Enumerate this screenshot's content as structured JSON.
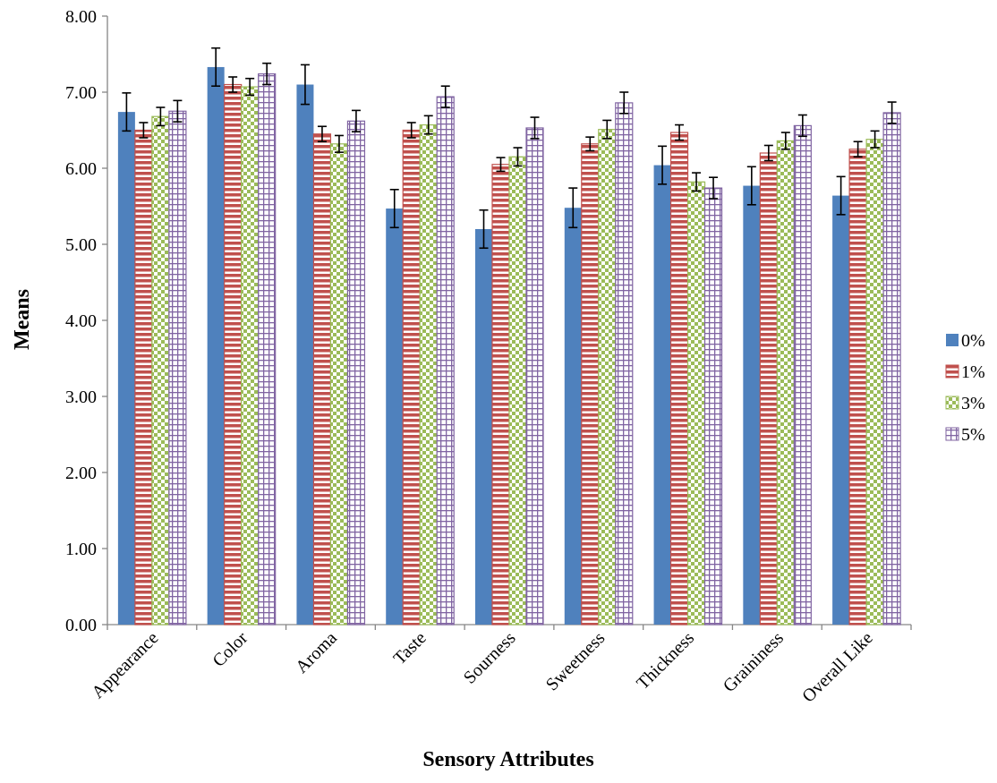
{
  "chart_data": {
    "type": "bar",
    "title": "",
    "xlabel": "Sensory Attributes",
    "ylabel": "Means",
    "ylim": [
      0,
      8
    ],
    "yticks": [
      "0.00",
      "1.00",
      "2.00",
      "3.00",
      "4.00",
      "5.00",
      "6.00",
      "7.00",
      "8.00"
    ],
    "grid": false,
    "legend_position": "right",
    "categories": [
      "Appearance",
      "Color",
      "Aroma",
      "Taste",
      "Sourness",
      "Sweetness",
      "Thickness",
      "Graininess",
      "Overall Like"
    ],
    "series": [
      {
        "name": "0%",
        "color": "#4F81BD",
        "pattern": "solid",
        "values": [
          6.74,
          7.33,
          7.1,
          5.47,
          5.2,
          5.48,
          6.04,
          5.77,
          5.64
        ],
        "errors": [
          0.25,
          0.25,
          0.26,
          0.25,
          0.25,
          0.26,
          0.25,
          0.25,
          0.25
        ]
      },
      {
        "name": "1%",
        "color": "#C0504D",
        "pattern": "horizontal-stripes",
        "values": [
          6.5,
          7.1,
          6.45,
          6.5,
          6.05,
          6.32,
          6.47,
          6.2,
          6.25
        ],
        "errors": [
          0.1,
          0.1,
          0.1,
          0.1,
          0.09,
          0.09,
          0.1,
          0.1,
          0.1
        ]
      },
      {
        "name": "3%",
        "color": "#9BBB59",
        "pattern": "checkerboard",
        "values": [
          6.68,
          7.07,
          6.32,
          6.57,
          6.15,
          6.51,
          5.82,
          6.36,
          6.38
        ],
        "errors": [
          0.12,
          0.11,
          0.11,
          0.12,
          0.12,
          0.12,
          0.12,
          0.11,
          0.11
        ]
      },
      {
        "name": "5%",
        "color": "#8064A2",
        "pattern": "grid",
        "values": [
          6.75,
          7.24,
          6.62,
          6.94,
          6.53,
          6.86,
          5.74,
          6.56,
          6.73
        ],
        "errors": [
          0.14,
          0.14,
          0.14,
          0.14,
          0.14,
          0.14,
          0.14,
          0.14,
          0.14
        ]
      }
    ]
  }
}
